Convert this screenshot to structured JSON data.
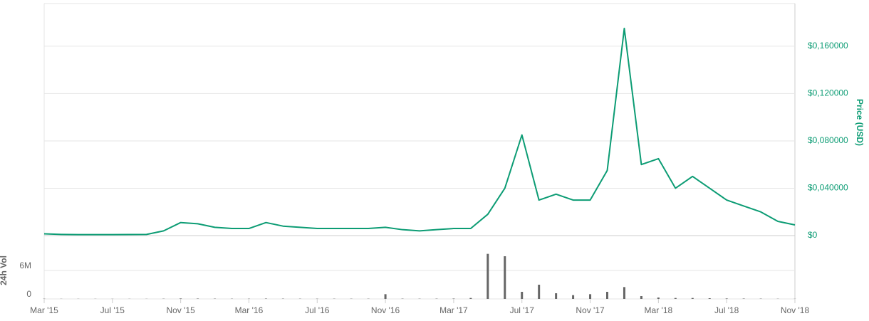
{
  "chart_data": {
    "type": "line",
    "x": [
      "2015-03",
      "2015-04",
      "2015-05",
      "2015-06",
      "2015-07",
      "2015-08",
      "2015-09",
      "2015-10",
      "2015-11",
      "2015-12",
      "2016-01",
      "2016-02",
      "2016-03",
      "2016-04",
      "2016-05",
      "2016-06",
      "2016-07",
      "2016-08",
      "2016-09",
      "2016-10",
      "2016-11",
      "2016-12",
      "2017-01",
      "2017-02",
      "2017-03",
      "2017-04",
      "2017-05",
      "2017-06",
      "2017-07",
      "2017-08",
      "2017-09",
      "2017-10",
      "2017-11",
      "2017-12",
      "2018-01",
      "2018-02",
      "2018-03",
      "2018-04",
      "2018-05",
      "2018-06",
      "2018-07",
      "2018-08",
      "2018-09",
      "2018-10",
      "2018-11"
    ],
    "xticks": [
      {
        "value": "2015-03",
        "label": "Mar '15"
      },
      {
        "value": "2015-07",
        "label": "Jul '15"
      },
      {
        "value": "2015-11",
        "label": "Nov '15"
      },
      {
        "value": "2016-03",
        "label": "Mar '16"
      },
      {
        "value": "2016-07",
        "label": "Jul '16"
      },
      {
        "value": "2016-11",
        "label": "Nov '16"
      },
      {
        "value": "2017-03",
        "label": "Mar '17"
      },
      {
        "value": "2017-07",
        "label": "Jul '17"
      },
      {
        "value": "2017-11",
        "label": "Nov '17"
      },
      {
        "value": "2018-03",
        "label": "Mar '18"
      },
      {
        "value": "2018-07",
        "label": "Jul '18"
      },
      {
        "value": "2018-11",
        "label": "Nov '18"
      }
    ],
    "series": [
      {
        "color": "#0c9c74",
        "values": [
          0.0015,
          0.001,
          0.0008,
          0.0008,
          0.0008,
          0.0009,
          0.001,
          0.004,
          0.011,
          0.01,
          0.007,
          0.006,
          0.006,
          0.011,
          0.008,
          0.007,
          0.006,
          0.006,
          0.006,
          0.006,
          0.007,
          0.005,
          0.004,
          0.005,
          0.006,
          0.006,
          0.018,
          0.04,
          0.085,
          0.03,
          0.035,
          0.03,
          0.03,
          0.055,
          0.175,
          0.06,
          0.065,
          0.04,
          0.05,
          0.04,
          0.03,
          0.025,
          0.02,
          0.012,
          0.009
        ]
      }
    ],
    "ylim": [
      0,
      0.196
    ],
    "yticks": [
      {
        "value": 0,
        "label": "$0"
      },
      {
        "value": 0.04,
        "label": "$0,040000"
      },
      {
        "value": 0.08,
        "label": "$0,080000"
      },
      {
        "value": 0.12,
        "label": "$0,120000"
      },
      {
        "value": 0.16,
        "label": "$0,160000"
      }
    ],
    "y_label": "Price (USD)",
    "grid": true,
    "volume": {
      "label": "24h Vol",
      "color": "#666666",
      "values": [
        50000,
        30000,
        30000,
        30000,
        30000,
        30000,
        30000,
        50000,
        100000,
        80000,
        60000,
        50000,
        50000,
        80000,
        60000,
        50000,
        50000,
        50000,
        50000,
        50000,
        1000000,
        60000,
        50000,
        60000,
        80000,
        200000,
        9500000,
        9000000,
        1500000,
        3000000,
        1200000,
        800000,
        1000000,
        1500000,
        2500000,
        600000,
        300000,
        200000,
        200000,
        150000,
        100000,
        80000,
        60000,
        40000,
        30000
      ],
      "ylim": [
        0,
        12300000
      ],
      "yticks": [
        0,
        {
          "value": 6000000,
          "label": "6M"
        }
      ]
    }
  }
}
